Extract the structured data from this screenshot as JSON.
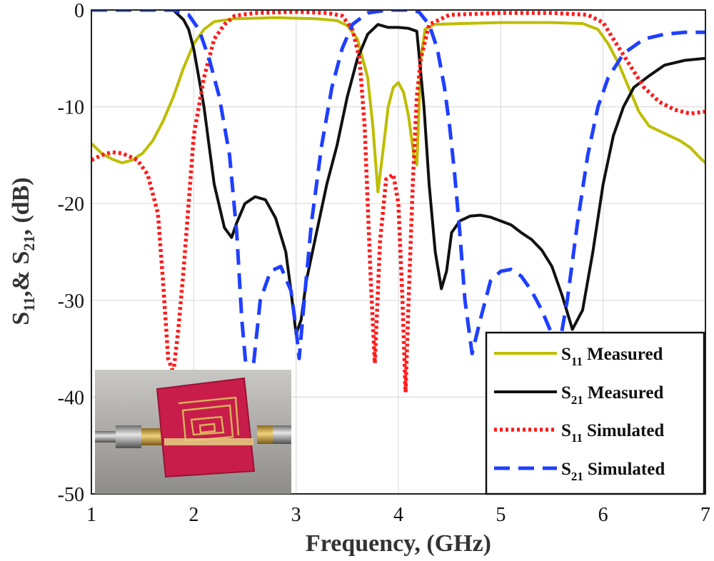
{
  "chart_data": {
    "type": "line",
    "title": "",
    "xlabel": "Frequency, (GHz)",
    "ylabel": "S11,& S21, (dB)",
    "ylabel_parts": {
      "s": "S",
      "sub1": "11",
      "mid": ",& S",
      "sub2": "21",
      "tail": ", (dB)"
    },
    "xlim": [
      1,
      7
    ],
    "ylim": [
      -50,
      0
    ],
    "xticks": [
      1,
      2,
      3,
      4,
      5,
      6,
      7
    ],
    "xtick_labels": [
      "1",
      "2",
      "3",
      "4",
      "5",
      "6",
      "7"
    ],
    "yticks": [
      0,
      -10,
      -20,
      -30,
      -40,
      -50
    ],
    "ytick_labels": [
      "0",
      "-10",
      "-20",
      "-30",
      "-40",
      "-50"
    ],
    "grid": true,
    "legend_position": "bottom-right",
    "series": [
      {
        "name": "S11 Measured",
        "sym": "S",
        "sub": "11",
        "label": "Measured",
        "color": "#bdbd00",
        "style": "solid",
        "points": [
          [
            1,
            -13.8
          ],
          [
            1.1,
            -14.8
          ],
          [
            1.2,
            -15.4
          ],
          [
            1.3,
            -15.8
          ],
          [
            1.4,
            -15.5
          ],
          [
            1.5,
            -14.8
          ],
          [
            1.6,
            -13.5
          ],
          [
            1.7,
            -11.5
          ],
          [
            1.8,
            -9
          ],
          [
            1.9,
            -6
          ],
          [
            2,
            -3.5
          ],
          [
            2.1,
            -2
          ],
          [
            2.2,
            -1.2
          ],
          [
            2.4,
            -0.9
          ],
          [
            2.8,
            -0.8
          ],
          [
            3.2,
            -0.9
          ],
          [
            3.4,
            -1.1
          ],
          [
            3.5,
            -1.6
          ],
          [
            3.6,
            -3
          ],
          [
            3.7,
            -7
          ],
          [
            3.75,
            -12
          ],
          [
            3.8,
            -18.8
          ],
          [
            3.85,
            -14.5
          ],
          [
            3.9,
            -10
          ],
          [
            3.95,
            -8
          ],
          [
            4.0,
            -7.5
          ],
          [
            4.05,
            -8.5
          ],
          [
            4.1,
            -11
          ],
          [
            4.15,
            -15
          ],
          [
            4.18,
            -16
          ],
          [
            4.22,
            -5
          ],
          [
            4.26,
            -2
          ],
          [
            4.35,
            -1.5
          ],
          [
            4.6,
            -1.4
          ],
          [
            5.0,
            -1.3
          ],
          [
            5.5,
            -1.3
          ],
          [
            5.8,
            -1.4
          ],
          [
            5.95,
            -2
          ],
          [
            6.05,
            -3.5
          ],
          [
            6.15,
            -5.5
          ],
          [
            6.25,
            -8
          ],
          [
            6.35,
            -10.5
          ],
          [
            6.45,
            -12
          ],
          [
            6.55,
            -12.5
          ],
          [
            6.65,
            -13
          ],
          [
            6.75,
            -13.5
          ],
          [
            6.85,
            -14.2
          ],
          [
            6.95,
            -15.3
          ],
          [
            7,
            -15.8
          ]
        ]
      },
      {
        "name": "S21 Measured",
        "sym": "S",
        "sub": "21",
        "label": "Measured",
        "color": "#111111",
        "style": "solid",
        "points": [
          [
            1.8,
            0
          ],
          [
            1.9,
            -1
          ],
          [
            1.95,
            -2
          ],
          [
            2.0,
            -4
          ],
          [
            2.05,
            -7
          ],
          [
            2.1,
            -10
          ],
          [
            2.15,
            -14
          ],
          [
            2.2,
            -18
          ],
          [
            2.3,
            -22.5
          ],
          [
            2.37,
            -23.5
          ],
          [
            2.42,
            -22
          ],
          [
            2.5,
            -20
          ],
          [
            2.6,
            -19.3
          ],
          [
            2.7,
            -19.6
          ],
          [
            2.8,
            -21.5
          ],
          [
            2.9,
            -25
          ],
          [
            2.95,
            -29
          ],
          [
            3.0,
            -33.5
          ],
          [
            3.05,
            -32
          ],
          [
            3.1,
            -28
          ],
          [
            3.2,
            -23
          ],
          [
            3.3,
            -18
          ],
          [
            3.4,
            -14
          ],
          [
            3.5,
            -9
          ],
          [
            3.6,
            -5
          ],
          [
            3.7,
            -2.5
          ],
          [
            3.8,
            -1.5
          ],
          [
            3.9,
            -1.8
          ],
          [
            4.0,
            -1.8
          ],
          [
            4.1,
            -1.9
          ],
          [
            4.18,
            -2.2
          ],
          [
            4.25,
            -10
          ],
          [
            4.3,
            -18
          ],
          [
            4.36,
            -25
          ],
          [
            4.42,
            -28.8
          ],
          [
            4.47,
            -27
          ],
          [
            4.52,
            -23
          ],
          [
            4.6,
            -21.8
          ],
          [
            4.7,
            -21.3
          ],
          [
            4.8,
            -21.2
          ],
          [
            4.9,
            -21.4
          ],
          [
            5.0,
            -21.8
          ],
          [
            5.1,
            -22.2
          ],
          [
            5.2,
            -23
          ],
          [
            5.3,
            -23.7
          ],
          [
            5.4,
            -24.8
          ],
          [
            5.5,
            -26.5
          ],
          [
            5.6,
            -29.5
          ],
          [
            5.7,
            -33
          ],
          [
            5.8,
            -31
          ],
          [
            5.9,
            -25
          ],
          [
            6.0,
            -18
          ],
          [
            6.1,
            -13
          ],
          [
            6.2,
            -10
          ],
          [
            6.3,
            -8
          ],
          [
            6.45,
            -6.8
          ],
          [
            6.6,
            -5.7
          ],
          [
            6.8,
            -5.2
          ],
          [
            7.0,
            -5.0
          ]
        ]
      },
      {
        "name": "S11 Simulated",
        "sym": "S",
        "sub": "11",
        "label": "Simulated",
        "color": "#ff1a1a",
        "style": "dotted",
        "points": [
          [
            1.0,
            -15.5
          ],
          [
            1.1,
            -15.0
          ],
          [
            1.2,
            -14.7
          ],
          [
            1.3,
            -14.8
          ],
          [
            1.45,
            -15.5
          ],
          [
            1.55,
            -17
          ],
          [
            1.65,
            -21
          ],
          [
            1.7,
            -28
          ],
          [
            1.75,
            -36
          ],
          [
            1.8,
            -37.5
          ],
          [
            1.85,
            -33
          ],
          [
            1.9,
            -27
          ],
          [
            1.95,
            -20
          ],
          [
            2.0,
            -13
          ],
          [
            2.1,
            -7
          ],
          [
            2.2,
            -3
          ],
          [
            2.3,
            -1.5
          ],
          [
            2.4,
            -0.6
          ],
          [
            2.6,
            -0.3
          ],
          [
            3.0,
            -0.2
          ],
          [
            3.3,
            -0.3
          ],
          [
            3.45,
            -0.6
          ],
          [
            3.55,
            -2
          ],
          [
            3.62,
            -5
          ],
          [
            3.67,
            -12
          ],
          [
            3.7,
            -20
          ],
          [
            3.73,
            -28
          ],
          [
            3.77,
            -36.5
          ],
          [
            3.82,
            -24
          ],
          [
            3.88,
            -17.5
          ],
          [
            3.95,
            -17
          ],
          [
            4.0,
            -20
          ],
          [
            4.04,
            -30
          ],
          [
            4.07,
            -39.5
          ],
          [
            4.1,
            -30
          ],
          [
            4.14,
            -18
          ],
          [
            4.18,
            -9
          ],
          [
            4.22,
            -5
          ],
          [
            4.3,
            -1.5
          ],
          [
            4.5,
            -0.5
          ],
          [
            5.0,
            -0.3
          ],
          [
            5.5,
            -0.3
          ],
          [
            5.85,
            -0.5
          ],
          [
            6.0,
            -1.3
          ],
          [
            6.1,
            -3
          ],
          [
            6.25,
            -5.5
          ],
          [
            6.4,
            -8
          ],
          [
            6.55,
            -9.5
          ],
          [
            6.7,
            -10.3
          ],
          [
            6.85,
            -10.7
          ],
          [
            7.0,
            -10.5
          ]
        ]
      },
      {
        "name": "S21 Simulated",
        "sym": "S",
        "sub": "21",
        "label": "Simulated",
        "color": "#1f3fff",
        "style": "dashed",
        "points": [
          [
            1.0,
            0
          ],
          [
            1.4,
            0
          ],
          [
            1.8,
            0
          ],
          [
            1.95,
            -0.5
          ],
          [
            2.05,
            -2
          ],
          [
            2.15,
            -5
          ],
          [
            2.25,
            -9
          ],
          [
            2.35,
            -15
          ],
          [
            2.42,
            -23
          ],
          [
            2.47,
            -32
          ],
          [
            2.52,
            -38
          ],
          [
            2.58,
            -37
          ],
          [
            2.65,
            -30
          ],
          [
            2.75,
            -27
          ],
          [
            2.85,
            -26.5
          ],
          [
            2.95,
            -29
          ],
          [
            3.0,
            -33
          ],
          [
            3.03,
            -36
          ],
          [
            3.08,
            -30
          ],
          [
            3.15,
            -22
          ],
          [
            3.25,
            -14
          ],
          [
            3.35,
            -8
          ],
          [
            3.45,
            -4
          ],
          [
            3.55,
            -1.5
          ],
          [
            3.7,
            -0.3
          ],
          [
            3.9,
            0
          ],
          [
            4.1,
            0
          ],
          [
            4.2,
            -0.2
          ],
          [
            4.3,
            -1.5
          ],
          [
            4.38,
            -4
          ],
          [
            4.45,
            -8
          ],
          [
            4.5,
            -12
          ],
          [
            4.55,
            -17
          ],
          [
            4.6,
            -23
          ],
          [
            4.65,
            -30
          ],
          [
            4.72,
            -35.5
          ],
          [
            4.8,
            -32
          ],
          [
            4.9,
            -28
          ],
          [
            5.0,
            -27
          ],
          [
            5.1,
            -26.8
          ],
          [
            5.2,
            -27.5
          ],
          [
            5.3,
            -29
          ],
          [
            5.4,
            -31
          ],
          [
            5.5,
            -33.5
          ],
          [
            5.55,
            -36
          ],
          [
            5.65,
            -30
          ],
          [
            5.75,
            -22
          ],
          [
            5.85,
            -15
          ],
          [
            5.95,
            -10
          ],
          [
            6.05,
            -7
          ],
          [
            6.2,
            -4.5
          ],
          [
            6.4,
            -3
          ],
          [
            6.6,
            -2.5
          ],
          [
            6.8,
            -2.3
          ],
          [
            7.0,
            -2.3
          ]
        ]
      }
    ]
  }
}
